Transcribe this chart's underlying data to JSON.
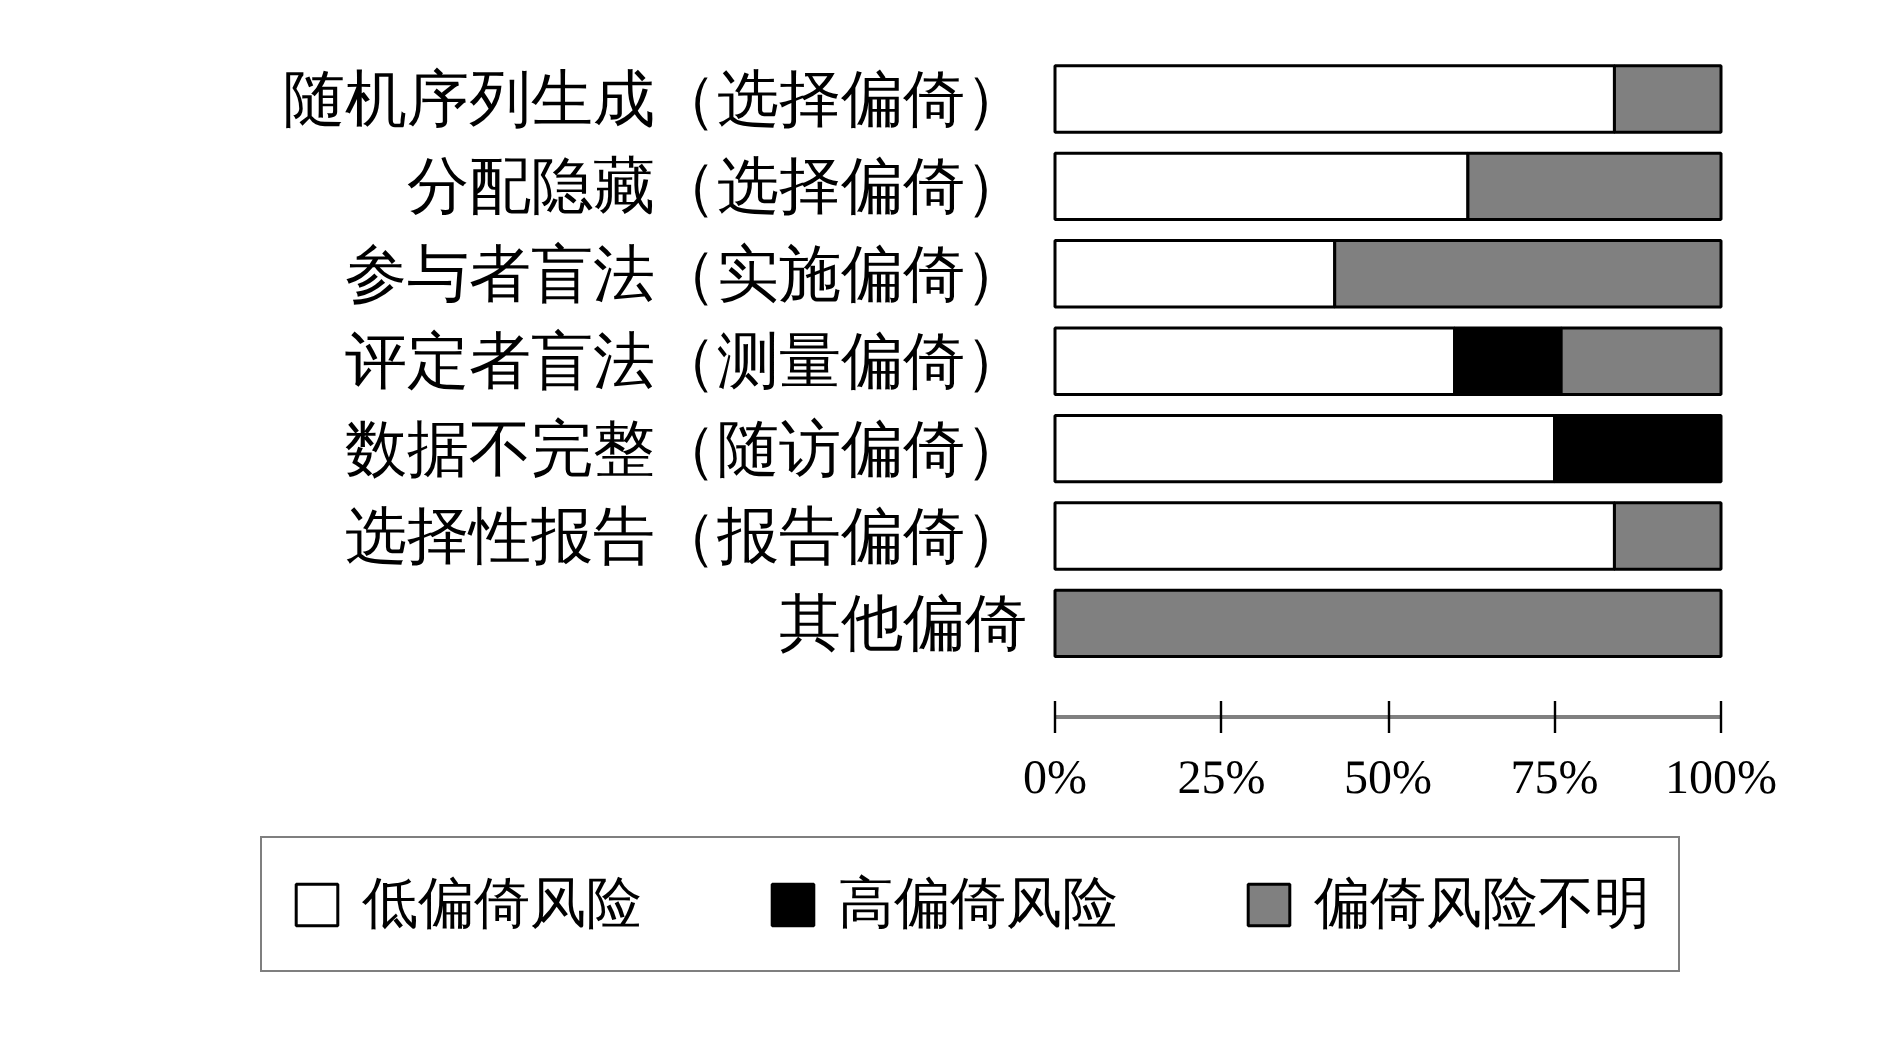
{
  "chart_data": {
    "type": "bar",
    "orientation": "horizontal",
    "stacked": true,
    "categories": [
      "随机序列生成（选择偏倚）",
      "分配隐藏（选择偏倚）",
      "参与者盲法（实施偏倚）",
      "评定者盲法（测量偏倚）",
      "数据不完整（随访偏倚）",
      "选择性报告（报告偏倚）",
      "其他偏倚"
    ],
    "series": [
      {
        "name": "低偏倚风险",
        "color": "#ffffff",
        "values": [
          84,
          62,
          42,
          60,
          75,
          84,
          0
        ]
      },
      {
        "name": "高偏倚风险",
        "color": "#000000",
        "values": [
          0,
          0,
          0,
          16,
          25,
          0,
          0
        ]
      },
      {
        "name": "偏倚风险不明",
        "color": "#808080",
        "values": [
          16,
          38,
          58,
          24,
          0,
          16,
          100
        ]
      }
    ],
    "xlim": [
      0,
      100
    ],
    "xticks": [
      {
        "value": 0,
        "label": "0%"
      },
      {
        "value": 25,
        "label": "25%"
      },
      {
        "value": 50,
        "label": "50%"
      },
      {
        "value": 75,
        "label": "75%"
      },
      {
        "value": 100,
        "label": "100%"
      }
    ],
    "grid": false,
    "legend": "bottom"
  }
}
